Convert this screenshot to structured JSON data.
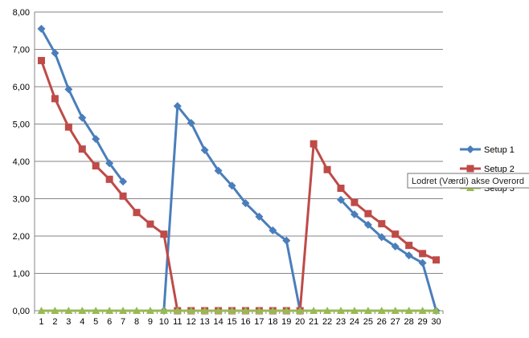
{
  "chart_data": {
    "type": "line",
    "x": [
      1,
      2,
      3,
      4,
      5,
      6,
      7,
      8,
      9,
      10,
      11,
      12,
      13,
      14,
      15,
      16,
      17,
      18,
      19,
      20,
      21,
      22,
      23,
      24,
      25,
      26,
      27,
      28,
      29,
      30
    ],
    "ylim": [
      0,
      8
    ],
    "yticks": [
      "0,00",
      "1,00",
      "2,00",
      "3,00",
      "4,00",
      "5,00",
      "6,00",
      "7,00",
      "8,00"
    ],
    "grid": true,
    "legend_position": "right",
    "series": [
      {
        "name": "Setup 1",
        "color": "#4a7ebb",
        "marker": "diamond",
        "values": [
          7.55,
          6.9,
          5.93,
          5.17,
          4.6,
          3.95,
          3.46,
          null,
          null,
          0,
          5.48,
          5.03,
          4.3,
          3.75,
          3.35,
          2.88,
          2.52,
          2.15,
          1.88,
          0,
          null,
          null,
          2.97,
          2.58,
          2.3,
          1.97,
          1.72,
          1.48,
          1.28,
          0
        ]
      },
      {
        "name": "Setup 2",
        "color": "#be4b48",
        "marker": "square",
        "values": [
          6.7,
          5.68,
          4.92,
          4.33,
          3.88,
          3.52,
          3.07,
          2.63,
          2.32,
          2.05,
          0,
          0,
          0,
          0,
          0,
          0,
          0,
          0,
          0,
          0,
          4.47,
          3.78,
          3.28,
          2.9,
          2.6,
          2.33,
          2.05,
          1.75,
          1.53,
          1.36
        ]
      },
      {
        "name": "Setup 3",
        "color": "#98b954",
        "marker": "triangle",
        "values": [
          0,
          0,
          0,
          0,
          0,
          0,
          0,
          0,
          0,
          0,
          0,
          0,
          0,
          0,
          0,
          0,
          0,
          0,
          0,
          0,
          0,
          0,
          0,
          0,
          0,
          0,
          0,
          0,
          0,
          0
        ]
      }
    ]
  },
  "tooltip": {
    "text": "Lodret (Værdi) akse Overord"
  }
}
